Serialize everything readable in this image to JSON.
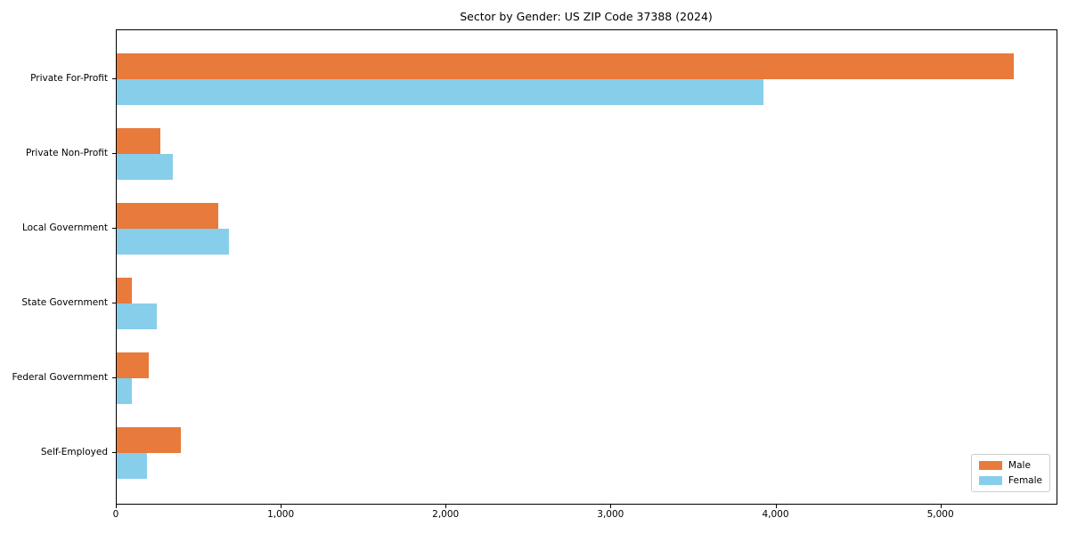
{
  "title": "Sector by Gender: US ZIP Code 37388 (2024)",
  "colors": {
    "male": "#E87A3C",
    "female": "#87CEEB",
    "spine": "#000000",
    "legend_border": "#cccccc",
    "background": "#ffffff"
  },
  "legend": {
    "position": "lower right",
    "entries": [
      {
        "label": "Male",
        "color": "#E87A3C"
      },
      {
        "label": "Female",
        "color": "#87CEEB"
      }
    ]
  },
  "chart_data": {
    "type": "bar",
    "orientation": "horizontal",
    "title": "Sector by Gender: US ZIP Code 37388 (2024)",
    "categories": [
      "Private For-Profit",
      "Private Non-Profit",
      "Local Government",
      "State Government",
      "Federal Government",
      "Self-Employed"
    ],
    "series": [
      {
        "name": "Male",
        "color": "#E87A3C",
        "values": [
          5440,
          265,
          615,
          90,
          195,
          390
        ]
      },
      {
        "name": "Female",
        "color": "#87CEEB",
        "values": [
          3920,
          340,
          680,
          245,
          90,
          185
        ]
      }
    ],
    "xlabel": "",
    "ylabel": "",
    "xlim": [
      0,
      5710
    ],
    "xticks": [
      0,
      1000,
      2000,
      3000,
      4000,
      5000
    ],
    "xtick_labels": [
      "0",
      "1,000",
      "2,000",
      "3,000",
      "4,000",
      "5,000"
    ],
    "grid": false,
    "legend_position": "lower right"
  }
}
